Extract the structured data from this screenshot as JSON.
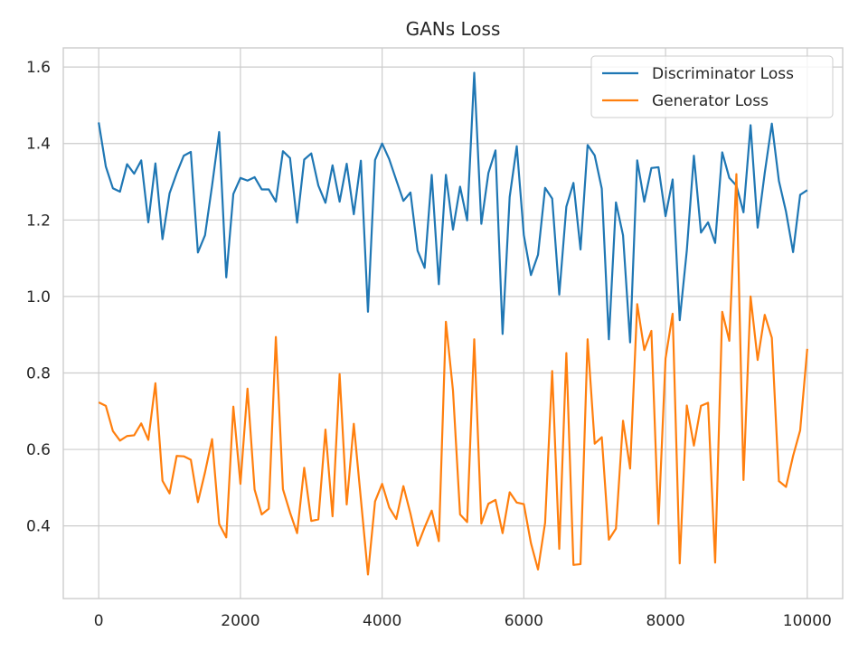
{
  "chart_data": {
    "type": "line",
    "title": "GANs Loss",
    "xlabel": "",
    "ylabel": "",
    "xlim": [
      -500,
      10500
    ],
    "ylim": [
      0.21,
      1.65
    ],
    "x_ticks": [
      0,
      2000,
      4000,
      6000,
      8000,
      10000
    ],
    "y_ticks": [
      0.4,
      0.6,
      0.8,
      1.0,
      1.2,
      1.4,
      1.6
    ],
    "x_tick_labels": [
      "0",
      "2000",
      "4000",
      "6000",
      "8000",
      "10000"
    ],
    "y_tick_labels": [
      "0.4",
      "0.6",
      "0.8",
      "1.0",
      "1.2",
      "1.4",
      "1.6"
    ],
    "grid": true,
    "legend_position": "top-right",
    "x": [
      0,
      100,
      200,
      300,
      400,
      500,
      600,
      700,
      800,
      900,
      1000,
      1100,
      1200,
      1300,
      1400,
      1500,
      1600,
      1700,
      1800,
      1900,
      2000,
      2100,
      2200,
      2300,
      2400,
      2500,
      2600,
      2700,
      2800,
      2900,
      3000,
      3100,
      3200,
      3300,
      3400,
      3500,
      3600,
      3700,
      3800,
      3900,
      4000,
      4100,
      4200,
      4300,
      4400,
      4500,
      4600,
      4700,
      4800,
      4900,
      5000,
      5100,
      5200,
      5300,
      5400,
      5500,
      5600,
      5700,
      5800,
      5900,
      6000,
      6100,
      6200,
      6300,
      6400,
      6500,
      6600,
      6700,
      6800,
      6900,
      7000,
      7100,
      7200,
      7300,
      7400,
      7500,
      7600,
      7700,
      7800,
      7900,
      8000,
      8100,
      8200,
      8300,
      8400,
      8500,
      8600,
      8700,
      8800,
      8900,
      9000,
      9100,
      9200,
      9300,
      9400,
      9500,
      9600,
      9700,
      9800,
      9900,
      10000
    ],
    "series": [
      {
        "name": "Discriminator Loss",
        "color": "#1f77b4",
        "values": [
          1.455,
          1.34,
          1.283,
          1.274,
          1.346,
          1.321,
          1.356,
          1.194,
          1.348,
          1.15,
          1.27,
          1.322,
          1.368,
          1.378,
          1.115,
          1.16,
          1.29,
          1.43,
          1.05,
          1.268,
          1.31,
          1.303,
          1.312,
          1.28,
          1.28,
          1.248,
          1.38,
          1.362,
          1.193,
          1.358,
          1.374,
          1.29,
          1.245,
          1.343,
          1.248,
          1.347,
          1.215,
          1.355,
          0.96,
          1.357,
          1.4,
          1.359,
          1.304,
          1.25,
          1.272,
          1.12,
          1.075,
          1.318,
          1.032,
          1.318,
          1.175,
          1.287,
          1.199,
          1.585,
          1.19,
          1.323,
          1.382,
          0.902,
          1.26,
          1.393,
          1.16,
          1.056,
          1.109,
          1.284,
          1.256,
          1.005,
          1.235,
          1.297,
          1.123,
          1.396,
          1.369,
          1.282,
          0.888,
          1.246,
          1.16,
          0.88,
          1.356,
          1.248,
          1.336,
          1.338,
          1.21,
          1.306,
          0.938,
          1.12,
          1.368,
          1.167,
          1.194,
          1.14,
          1.377,
          1.31,
          1.29,
          1.22,
          1.448,
          1.18,
          1.323,
          1.452,
          1.302,
          1.222,
          1.116,
          1.266,
          1.278
        ]
      },
      {
        "name": "Generator Loss",
        "color": "#ff7f0e",
        "values": [
          0.723,
          0.714,
          0.648,
          0.623,
          0.635,
          0.637,
          0.668,
          0.625,
          0.773,
          0.518,
          0.485,
          0.583,
          0.582,
          0.573,
          0.462,
          0.54,
          0.627,
          0.405,
          0.37,
          0.712,
          0.51,
          0.759,
          0.495,
          0.43,
          0.445,
          0.894,
          0.496,
          0.435,
          0.381,
          0.552,
          0.413,
          0.417,
          0.652,
          0.425,
          0.797,
          0.456,
          0.667,
          0.47,
          0.273,
          0.464,
          0.51,
          0.448,
          0.418,
          0.504,
          0.432,
          0.348,
          0.396,
          0.44,
          0.36,
          0.934,
          0.754,
          0.43,
          0.41,
          0.888,
          0.406,
          0.458,
          0.468,
          0.381,
          0.488,
          0.461,
          0.457,
          0.355,
          0.286,
          0.408,
          0.805,
          0.34,
          0.852,
          0.298,
          0.3,
          0.888,
          0.615,
          0.632,
          0.364,
          0.393,
          0.675,
          0.55,
          0.98,
          0.86,
          0.91,
          0.405,
          0.838,
          0.955,
          0.302,
          0.715,
          0.61,
          0.714,
          0.722,
          0.304,
          0.96,
          0.884,
          1.32,
          0.52,
          1.0,
          0.834,
          0.952,
          0.892,
          0.517,
          0.502,
          0.583,
          0.65,
          0.863
        ]
      }
    ]
  }
}
